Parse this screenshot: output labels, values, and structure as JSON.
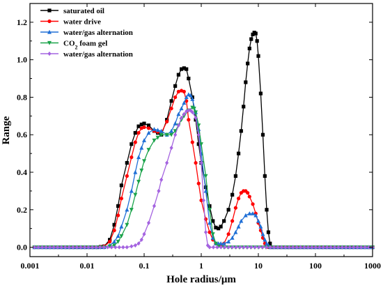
{
  "chart_data": {
    "type": "line",
    "xlabel": "Hole radius/μm",
    "ylabel": "Range",
    "x_scale": "log",
    "xlim": [
      0.001,
      1000
    ],
    "ylim": [
      -0.05,
      1.3
    ],
    "x_ticks": [
      0.001,
      0.01,
      0.1,
      1,
      10,
      100,
      1000
    ],
    "x_tick_labels": [
      "0.001",
      "0.01",
      "0.1",
      "1",
      "10",
      "100",
      "1000"
    ],
    "y_ticks": [
      0.0,
      0.2,
      0.4,
      0.6,
      0.8,
      1.0,
      1.2
    ],
    "y_tick_labels": [
      "0.0",
      "0.2",
      "0.4",
      "0.6",
      "0.8",
      "1.0",
      "1.2"
    ],
    "grid": false,
    "legend_position": "top-left",
    "series": [
      {
        "name": "saturated oil",
        "color": "#000000",
        "marker": "square",
        "points": [
          [
            0.0012,
            0
          ],
          [
            0.015,
            0
          ],
          [
            0.02,
            0.005
          ],
          [
            0.025,
            0.04
          ],
          [
            0.03,
            0.12
          ],
          [
            0.035,
            0.22
          ],
          [
            0.04,
            0.33
          ],
          [
            0.05,
            0.45
          ],
          [
            0.06,
            0.55
          ],
          [
            0.07,
            0.61
          ],
          [
            0.08,
            0.645
          ],
          [
            0.09,
            0.655
          ],
          [
            0.1,
            0.66
          ],
          [
            0.12,
            0.65
          ],
          [
            0.15,
            0.62
          ],
          [
            0.2,
            0.6
          ],
          [
            0.25,
            0.68
          ],
          [
            0.3,
            0.78
          ],
          [
            0.35,
            0.86
          ],
          [
            0.4,
            0.92
          ],
          [
            0.45,
            0.95
          ],
          [
            0.5,
            0.955
          ],
          [
            0.55,
            0.95
          ],
          [
            0.6,
            0.9
          ],
          [
            0.7,
            0.8
          ],
          [
            0.8,
            0.68
          ],
          [
            0.9,
            0.55
          ],
          [
            1.0,
            0.45
          ],
          [
            1.2,
            0.32
          ],
          [
            1.4,
            0.22
          ],
          [
            1.6,
            0.14
          ],
          [
            1.8,
            0.105
          ],
          [
            2.0,
            0.1
          ],
          [
            2.2,
            0.11
          ],
          [
            2.5,
            0.14
          ],
          [
            3,
            0.2
          ],
          [
            3.5,
            0.28
          ],
          [
            4,
            0.38
          ],
          [
            4.5,
            0.5
          ],
          [
            5,
            0.62
          ],
          [
            5.5,
            0.75
          ],
          [
            6,
            0.88
          ],
          [
            6.5,
            0.98
          ],
          [
            7,
            1.06
          ],
          [
            7.5,
            1.11
          ],
          [
            8,
            1.135
          ],
          [
            8.5,
            1.145
          ],
          [
            9,
            1.14
          ],
          [
            9.5,
            1.1
          ],
          [
            10,
            1.02
          ],
          [
            11,
            0.82
          ],
          [
            12,
            0.6
          ],
          [
            13,
            0.38
          ],
          [
            14,
            0.2
          ],
          [
            15,
            0.08
          ],
          [
            16,
            0.02
          ],
          [
            17,
            0
          ],
          [
            20,
            0
          ],
          [
            1000,
            0
          ]
        ]
      },
      {
        "name": "water drive",
        "color": "#ff0000",
        "marker": "circle",
        "points": [
          [
            0.0012,
            0
          ],
          [
            0.015,
            0
          ],
          [
            0.02,
            0.005
          ],
          [
            0.025,
            0.03
          ],
          [
            0.03,
            0.09
          ],
          [
            0.035,
            0.17
          ],
          [
            0.04,
            0.26
          ],
          [
            0.05,
            0.38
          ],
          [
            0.06,
            0.48
          ],
          [
            0.07,
            0.56
          ],
          [
            0.08,
            0.61
          ],
          [
            0.09,
            0.635
          ],
          [
            0.1,
            0.64
          ],
          [
            0.12,
            0.635
          ],
          [
            0.15,
            0.62
          ],
          [
            0.2,
            0.61
          ],
          [
            0.25,
            0.67
          ],
          [
            0.3,
            0.74
          ],
          [
            0.35,
            0.8
          ],
          [
            0.4,
            0.83
          ],
          [
            0.45,
            0.835
          ],
          [
            0.5,
            0.83
          ],
          [
            0.55,
            0.78
          ],
          [
            0.6,
            0.68
          ],
          [
            0.7,
            0.56
          ],
          [
            0.8,
            0.45
          ],
          [
            0.9,
            0.34
          ],
          [
            1.0,
            0.25
          ],
          [
            1.2,
            0.15
          ],
          [
            1.4,
            0.08
          ],
          [
            1.6,
            0.04
          ],
          [
            1.8,
            0.02
          ],
          [
            2.0,
            0.01
          ],
          [
            2.2,
            0.01
          ],
          [
            2.5,
            0.02
          ],
          [
            3,
            0.07
          ],
          [
            3.5,
            0.14
          ],
          [
            4,
            0.21
          ],
          [
            4.5,
            0.26
          ],
          [
            5,
            0.29
          ],
          [
            5.5,
            0.3
          ],
          [
            6,
            0.3
          ],
          [
            6.5,
            0.29
          ],
          [
            7,
            0.27
          ],
          [
            8,
            0.23
          ],
          [
            9,
            0.18
          ],
          [
            10,
            0.13
          ],
          [
            11,
            0.09
          ],
          [
            12,
            0.05
          ],
          [
            13,
            0.02
          ],
          [
            14,
            0.005
          ],
          [
            15,
            0
          ],
          [
            1000,
            0
          ]
        ]
      },
      {
        "name": "water/gas alternation",
        "color": "#1f6fd6",
        "marker": "triangle-up",
        "points": [
          [
            0.0012,
            0
          ],
          [
            0.02,
            0
          ],
          [
            0.025,
            0.01
          ],
          [
            0.03,
            0.03
          ],
          [
            0.035,
            0.06
          ],
          [
            0.04,
            0.11
          ],
          [
            0.05,
            0.2
          ],
          [
            0.06,
            0.3
          ],
          [
            0.07,
            0.4
          ],
          [
            0.08,
            0.48
          ],
          [
            0.09,
            0.53
          ],
          [
            0.1,
            0.57
          ],
          [
            0.12,
            0.61
          ],
          [
            0.15,
            0.63
          ],
          [
            0.2,
            0.62
          ],
          [
            0.25,
            0.6
          ],
          [
            0.3,
            0.62
          ],
          [
            0.35,
            0.66
          ],
          [
            0.4,
            0.71
          ],
          [
            0.45,
            0.74
          ],
          [
            0.5,
            0.77
          ],
          [
            0.55,
            0.8
          ],
          [
            0.6,
            0.815
          ],
          [
            0.65,
            0.81
          ],
          [
            0.7,
            0.79
          ],
          [
            0.8,
            0.72
          ],
          [
            0.9,
            0.63
          ],
          [
            1.0,
            0.5
          ],
          [
            1.2,
            0.3
          ],
          [
            1.4,
            0.13
          ],
          [
            1.6,
            0.05
          ],
          [
            1.8,
            0.02
          ],
          [
            2.0,
            0.02
          ],
          [
            2.2,
            0.02
          ],
          [
            2.5,
            0.02
          ],
          [
            3,
            0.03
          ],
          [
            3.5,
            0.05
          ],
          [
            4,
            0.08
          ],
          [
            4.5,
            0.11
          ],
          [
            5,
            0.14
          ],
          [
            6,
            0.17
          ],
          [
            7,
            0.18
          ],
          [
            8,
            0.18
          ],
          [
            9,
            0.17
          ],
          [
            10,
            0.14
          ],
          [
            11,
            0.11
          ],
          [
            12,
            0.07
          ],
          [
            13,
            0.04
          ],
          [
            14,
            0.02
          ],
          [
            15,
            0.01
          ],
          [
            16,
            0
          ],
          [
            1000,
            0
          ]
        ]
      },
      {
        "name": "CO2 foam gel",
        "color": "#1aa34a",
        "marker": "triangle-down",
        "points": [
          [
            0.0012,
            0
          ],
          [
            0.02,
            0
          ],
          [
            0.025,
            0.005
          ],
          [
            0.03,
            0.01
          ],
          [
            0.035,
            0.03
          ],
          [
            0.04,
            0.06
          ],
          [
            0.05,
            0.12
          ],
          [
            0.06,
            0.2
          ],
          [
            0.07,
            0.28
          ],
          [
            0.08,
            0.35
          ],
          [
            0.09,
            0.41
          ],
          [
            0.1,
            0.46
          ],
          [
            0.12,
            0.52
          ],
          [
            0.15,
            0.57
          ],
          [
            0.2,
            0.6
          ],
          [
            0.25,
            0.6
          ],
          [
            0.3,
            0.6
          ],
          [
            0.35,
            0.62
          ],
          [
            0.4,
            0.65
          ],
          [
            0.45,
            0.68
          ],
          [
            0.5,
            0.7
          ],
          [
            0.6,
            0.73
          ],
          [
            0.7,
            0.745
          ],
          [
            0.75,
            0.74
          ],
          [
            0.8,
            0.72
          ],
          [
            0.9,
            0.65
          ],
          [
            1.0,
            0.55
          ],
          [
            1.2,
            0.38
          ],
          [
            1.4,
            0.2
          ],
          [
            1.6,
            0.07
          ],
          [
            1.8,
            0.02
          ],
          [
            2.0,
            0.005
          ],
          [
            2.5,
            0
          ],
          [
            1000,
            0
          ]
        ]
      },
      {
        "name": "water/gas alternation",
        "color": "#a463e0",
        "marker": "diamond",
        "points": [
          [
            0.0012,
            0
          ],
          [
            0.05,
            0
          ],
          [
            0.06,
            0.005
          ],
          [
            0.07,
            0.01
          ],
          [
            0.08,
            0.02
          ],
          [
            0.09,
            0.04
          ],
          [
            0.1,
            0.07
          ],
          [
            0.12,
            0.13
          ],
          [
            0.15,
            0.22
          ],
          [
            0.18,
            0.3
          ],
          [
            0.2,
            0.36
          ],
          [
            0.25,
            0.45
          ],
          [
            0.3,
            0.53
          ],
          [
            0.35,
            0.6
          ],
          [
            0.4,
            0.65
          ],
          [
            0.45,
            0.69
          ],
          [
            0.5,
            0.71
          ],
          [
            0.55,
            0.725
          ],
          [
            0.6,
            0.73
          ],
          [
            0.65,
            0.73
          ],
          [
            0.7,
            0.72
          ],
          [
            0.8,
            0.69
          ],
          [
            0.9,
            0.6
          ],
          [
            1.0,
            0.45
          ],
          [
            1.1,
            0.25
          ],
          [
            1.2,
            0.08
          ],
          [
            1.3,
            0.01
          ],
          [
            1.4,
            0
          ],
          [
            1000,
            0
          ]
        ]
      }
    ]
  }
}
